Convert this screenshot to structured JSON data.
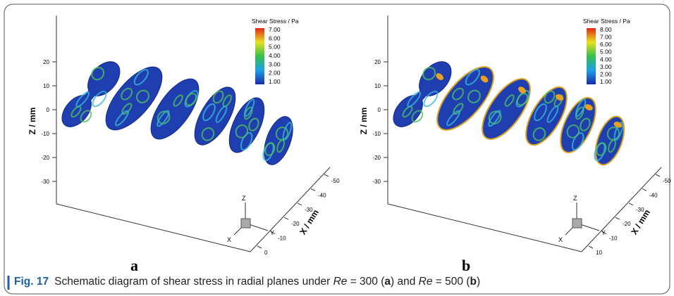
{
  "panels": [
    {
      "label": "a",
      "colorbar": {
        "title": "Shear Stress / Pa",
        "ticks": [
          "7.00",
          "6.00",
          "5.00",
          "4.00",
          "3.00",
          "2.00",
          "1.00"
        ]
      },
      "z_axis": {
        "title": "Z / mm",
        "ticks": [
          "20",
          "10",
          "0",
          "-10",
          "-20",
          "-30"
        ]
      },
      "x_axis": {
        "title": "X / mm",
        "ticks": [
          "-50",
          "-40",
          "-30",
          "-20",
          "-10",
          "0"
        ]
      },
      "triad": {
        "z": "Z",
        "x": "X",
        "y": "Y"
      }
    },
    {
      "label": "b",
      "colorbar": {
        "title": "Shear Stress / Pa",
        "ticks": [
          "8.00",
          "7.00",
          "6.00",
          "5.00",
          "4.00",
          "3.00",
          "2.00",
          "1.00"
        ]
      },
      "z_axis": {
        "title": "Z / mm",
        "ticks": [
          "20",
          "10",
          "0",
          "-10",
          "-20",
          "-30"
        ]
      },
      "x_axis": {
        "title": "X / mm",
        "ticks": [
          "-50",
          "-40",
          "-30",
          "-20",
          "-10",
          "10"
        ]
      },
      "triad": {
        "z": "Z",
        "x": "X",
        "y": "Y"
      }
    }
  ],
  "caption": {
    "label": "Fig. 17",
    "parts": [
      "Schematic diagram of shear stress in radial planes under ",
      "Re",
      " = 300 (",
      "a",
      ") and ",
      "Re",
      " = 500 (",
      "b",
      ")"
    ]
  }
}
